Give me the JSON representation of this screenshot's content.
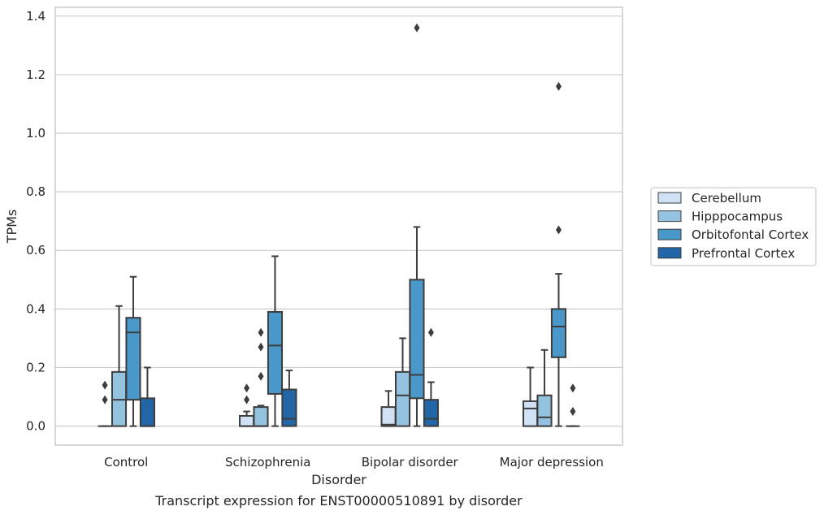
{
  "chart_data": {
    "type": "box",
    "title": "",
    "caption": "Transcript expression for ENST00000510891 by disorder",
    "xlabel": "Disorder",
    "ylabel": "TPMs",
    "ylim": [
      -0.065,
      1.43
    ],
    "yticks": [
      0.0,
      0.2,
      0.4,
      0.6,
      0.8,
      1.0,
      1.2,
      1.4
    ],
    "ytick_labels": [
      "0.0",
      "0.2",
      "0.4",
      "0.6",
      "0.8",
      "1.0",
      "1.2",
      "1.4"
    ],
    "grid": "horizontal",
    "legend_position": "right",
    "categories": [
      "Control",
      "Schizophrenia",
      "Bipolar disorder",
      "Major depression"
    ],
    "series": [
      {
        "name": "Cerebellum",
        "color": "#cfe1f2",
        "boxes": [
          {
            "whislo": 0.0,
            "q1": 0.0,
            "med": 0.0,
            "q3": 0.0,
            "whishi": 0.0,
            "fliers": [
              0.09,
              0.14
            ]
          },
          {
            "whislo": 0.0,
            "q1": 0.0,
            "med": 0.0,
            "q3": 0.035,
            "whishi": 0.05,
            "fliers": [
              0.09,
              0.13
            ]
          },
          {
            "whislo": 0.0,
            "q1": 0.0,
            "med": 0.005,
            "q3": 0.065,
            "whishi": 0.12,
            "fliers": []
          },
          {
            "whislo": 0.0,
            "q1": 0.0,
            "med": 0.06,
            "q3": 0.085,
            "whishi": 0.2,
            "fliers": []
          }
        ]
      },
      {
        "name": "Hipppocampus",
        "color": "#93c3df",
        "boxes": [
          {
            "whislo": 0.0,
            "q1": 0.0,
            "med": 0.09,
            "q3": 0.185,
            "whishi": 0.41,
            "fliers": []
          },
          {
            "whislo": 0.0,
            "q1": 0.0,
            "med": 0.0,
            "q3": 0.065,
            "whishi": 0.07,
            "fliers": [
              0.17,
              0.27,
              0.32
            ]
          },
          {
            "whislo": 0.0,
            "q1": 0.0,
            "med": 0.105,
            "q3": 0.185,
            "whishi": 0.3,
            "fliers": []
          },
          {
            "whislo": 0.0,
            "q1": 0.0,
            "med": 0.03,
            "q3": 0.105,
            "whishi": 0.26,
            "fliers": []
          }
        ]
      },
      {
        "name": "Orbitofontal Cortex",
        "color": "#4a98c9",
        "boxes": [
          {
            "whislo": 0.0,
            "q1": 0.09,
            "med": 0.32,
            "q3": 0.37,
            "whishi": 0.51,
            "fliers": []
          },
          {
            "whislo": 0.0,
            "q1": 0.11,
            "med": 0.275,
            "q3": 0.39,
            "whishi": 0.58,
            "fliers": []
          },
          {
            "whislo": 0.0,
            "q1": 0.095,
            "med": 0.175,
            "q3": 0.5,
            "whishi": 0.68,
            "fliers": [
              1.36
            ]
          },
          {
            "whislo": 0.0,
            "q1": 0.235,
            "med": 0.34,
            "q3": 0.4,
            "whishi": 0.52,
            "fliers": [
              0.67,
              1.16
            ]
          }
        ]
      },
      {
        "name": "Prefrontal Cortex",
        "color": "#2366a8",
        "boxes": [
          {
            "whislo": 0.0,
            "q1": 0.0,
            "med": 0.0,
            "q3": 0.095,
            "whishi": 0.2,
            "fliers": []
          },
          {
            "whislo": 0.0,
            "q1": 0.0,
            "med": 0.025,
            "q3": 0.125,
            "whishi": 0.19,
            "fliers": []
          },
          {
            "whislo": 0.0,
            "q1": 0.0,
            "med": 0.025,
            "q3": 0.09,
            "whishi": 0.15,
            "fliers": [
              0.32
            ]
          },
          {
            "whislo": 0.0,
            "q1": 0.0,
            "med": 0.0,
            "q3": 0.0,
            "whishi": 0.0,
            "fliers": [
              0.05,
              0.13
            ]
          }
        ]
      }
    ]
  }
}
